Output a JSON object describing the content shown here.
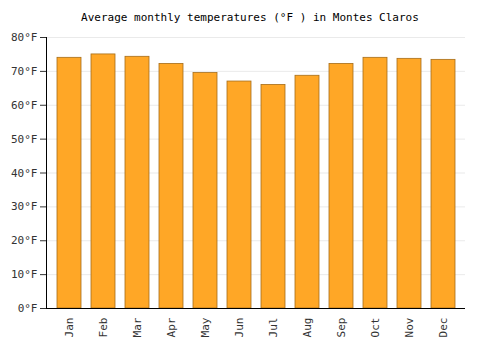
{
  "chart_data": {
    "type": "bar",
    "title": "Average monthly temperatures (°F ) in Montes Claros",
    "categories": [
      "Jan",
      "Feb",
      "Mar",
      "Apr",
      "May",
      "Jun",
      "Jul",
      "Aug",
      "Sep",
      "Oct",
      "Nov",
      "Dec"
    ],
    "values": [
      74,
      75,
      74.3,
      72.2,
      69.5,
      67,
      66,
      68.7,
      72.2,
      74,
      73.7,
      73.4
    ],
    "color": "#ffa726",
    "ylim": [
      0,
      80
    ],
    "yticks": [
      {
        "value": 0,
        "label": "0°F"
      },
      {
        "value": 10,
        "label": "10°F"
      },
      {
        "value": 20,
        "label": "20°F"
      },
      {
        "value": 30,
        "label": "30°F"
      },
      {
        "value": 40,
        "label": "40°F"
      },
      {
        "value": 50,
        "label": "50°F"
      },
      {
        "value": 60,
        "label": "60°F"
      },
      {
        "value": 70,
        "label": "70°F"
      },
      {
        "value": 80,
        "label": "80°F"
      }
    ],
    "grid": true
  }
}
